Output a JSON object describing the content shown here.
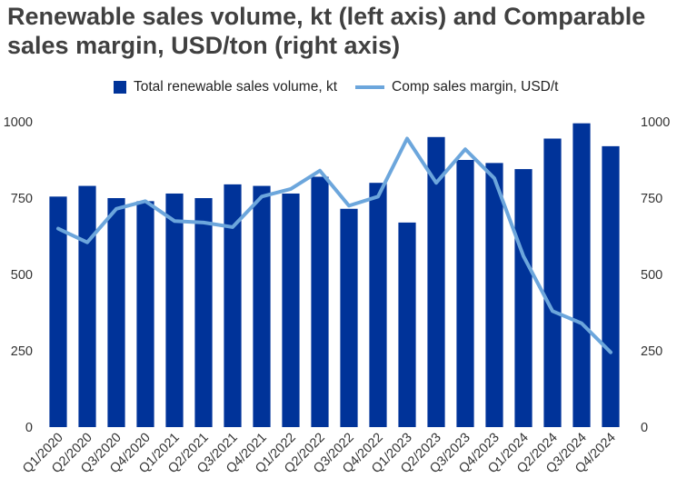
{
  "chart_data": {
    "type": "bar",
    "title": "Renewable sales volume, kt (left axis) and Comparable sales margin, USD/ton (right axis)",
    "categories": [
      "Q1/2020",
      "Q2/2020",
      "Q3/2020",
      "Q4/2020",
      "Q1/2021",
      "Q2/2021",
      "Q3/2021",
      "Q4/2021",
      "Q1/2022",
      "Q2/2022",
      "Q3/2022",
      "Q4/2022",
      "Q1/2023",
      "Q2/2023",
      "Q3/2023",
      "Q4/2023",
      "Q1/2024",
      "Q2/2024",
      "Q3/2024",
      "Q4/2024"
    ],
    "series": [
      {
        "name": "Total renewable sales volume, kt",
        "type": "bar",
        "axis": "left",
        "color": "#003399",
        "values": [
          755,
          790,
          750,
          740,
          765,
          750,
          795,
          790,
          765,
          820,
          715,
          800,
          670,
          950,
          875,
          865,
          845,
          945,
          995,
          920
        ]
      },
      {
        "name": "Comp sales margin, USD/t",
        "type": "line",
        "axis": "right",
        "color": "#6CA6DC",
        "values": [
          650,
          605,
          715,
          740,
          675,
          670,
          655,
          755,
          780,
          840,
          725,
          755,
          945,
          800,
          910,
          815,
          560,
          380,
          340,
          245
        ]
      }
    ],
    "left_axis": {
      "ylim": [
        0,
        1000
      ],
      "ticks": [
        "0",
        "250",
        "500",
        "750",
        "1000"
      ]
    },
    "right_axis": {
      "ylim": [
        0,
        1000
      ],
      "ticks": [
        "0",
        "250",
        "500",
        "750",
        "1000"
      ]
    },
    "grid": false,
    "legend": "top"
  }
}
